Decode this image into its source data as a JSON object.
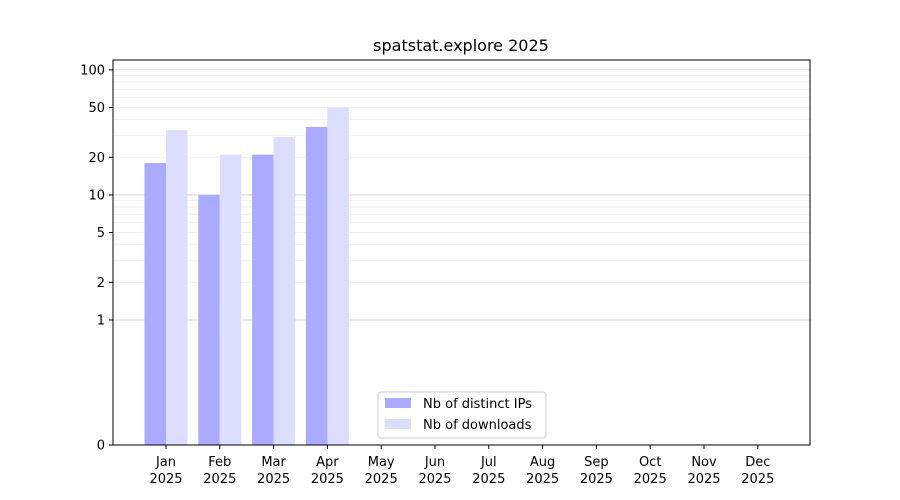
{
  "chart_data": {
    "type": "bar",
    "title": "spatstat.explore 2025",
    "xlabel": "",
    "ylabel": "",
    "y_scale": "symlog",
    "ylim": [
      0,
      120
    ],
    "y_ticks": [
      0,
      1,
      2,
      5,
      10,
      20,
      50,
      100
    ],
    "grid": "horizontal",
    "legend_position": "lower center",
    "categories": [
      [
        "Jan",
        "2025"
      ],
      [
        "Feb",
        "2025"
      ],
      [
        "Mar",
        "2025"
      ],
      [
        "Apr",
        "2025"
      ],
      [
        "May",
        "2025"
      ],
      [
        "Jun",
        "2025"
      ],
      [
        "Jul",
        "2025"
      ],
      [
        "Aug",
        "2025"
      ],
      [
        "Sep",
        "2025"
      ],
      [
        "Oct",
        "2025"
      ],
      [
        "Nov",
        "2025"
      ],
      [
        "Dec",
        "2025"
      ]
    ],
    "series": [
      {
        "name": "Nb of distinct IPs",
        "color": "#aaaaff",
        "values": [
          18,
          10,
          21,
          35,
          null,
          null,
          null,
          null,
          null,
          null,
          null,
          null
        ]
      },
      {
        "name": "Nb of downloads",
        "color": "#ddddff",
        "values": [
          33,
          21,
          29,
          50,
          null,
          null,
          null,
          null,
          null,
          null,
          null,
          null
        ]
      }
    ]
  }
}
